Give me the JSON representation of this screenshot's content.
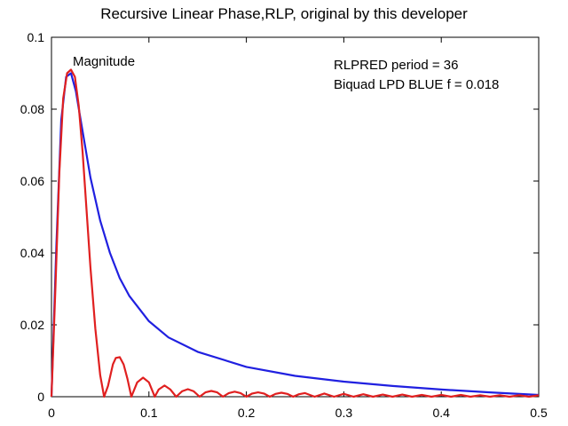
{
  "chart_data": {
    "type": "line",
    "title": "Recursive Linear Phase,RLP, original by this developer",
    "xlabel": "",
    "ylabel": "",
    "xlim": [
      0,
      0.5
    ],
    "ylim": [
      0,
      0.1
    ],
    "x_ticks": [
      "0",
      "0.1",
      "0.2",
      "0.3",
      "0.4",
      "0.5"
    ],
    "y_ticks": [
      "0",
      "0.02",
      "0.04",
      "0.06",
      "0.08",
      "0.1"
    ],
    "grid": false,
    "annotations": {
      "magnitude": "Magnitude",
      "rlpred": "RLPRED   period = 36",
      "biquad": "Biquad LPD  BLUE   f = 0.018"
    },
    "series": [
      {
        "color": "#2020e0",
        "x": [
          0.0,
          0.005,
          0.01,
          0.015,
          0.02,
          0.025,
          0.03,
          0.035,
          0.04,
          0.05,
          0.06,
          0.07,
          0.08,
          0.1,
          0.12,
          0.15,
          0.2,
          0.25,
          0.3,
          0.35,
          0.4,
          0.45,
          0.5
        ],
        "y": [
          0.0,
          0.042,
          0.077,
          0.089,
          0.09,
          0.085,
          0.077,
          0.069,
          0.061,
          0.049,
          0.04,
          0.033,
          0.028,
          0.021,
          0.0165,
          0.0125,
          0.0083,
          0.0058,
          0.0042,
          0.003,
          0.002,
          0.0012,
          0.0005
        ]
      },
      {
        "color": "#e02020",
        "x": [
          0.0,
          0.004,
          0.008,
          0.012,
          0.016,
          0.02,
          0.024,
          0.028,
          0.032,
          0.036,
          0.04,
          0.045,
          0.05,
          0.054,
          0.058,
          0.063,
          0.066,
          0.07,
          0.074,
          0.078,
          0.082,
          0.088,
          0.094,
          0.1,
          0.106,
          0.11,
          0.116,
          0.122,
          0.128,
          0.134,
          0.14,
          0.146,
          0.152,
          0.158,
          0.164,
          0.17,
          0.176,
          0.182,
          0.188,
          0.194,
          0.2,
          0.206,
          0.212,
          0.218,
          0.224,
          0.23,
          0.236,
          0.242,
          0.248,
          0.254,
          0.26,
          0.27,
          0.28,
          0.29,
          0.3,
          0.31,
          0.32,
          0.33,
          0.34,
          0.35,
          0.36,
          0.37,
          0.38,
          0.39,
          0.4,
          0.41,
          0.42,
          0.43,
          0.44,
          0.45,
          0.46,
          0.47,
          0.48,
          0.49,
          0.5
        ],
        "y": [
          0.0,
          0.03,
          0.062,
          0.083,
          0.09,
          0.091,
          0.089,
          0.081,
          0.068,
          0.052,
          0.036,
          0.019,
          0.006,
          0.0,
          0.003,
          0.009,
          0.0108,
          0.011,
          0.009,
          0.005,
          0.0,
          0.004,
          0.0053,
          0.004,
          0.0,
          0.002,
          0.0031,
          0.002,
          0.0,
          0.0015,
          0.0021,
          0.0015,
          0.0,
          0.0012,
          0.0016,
          0.0012,
          0.0,
          0.001,
          0.0014,
          0.001,
          0.0,
          0.0009,
          0.0012,
          0.0009,
          0.0,
          0.0008,
          0.0011,
          0.0008,
          0.0,
          0.0007,
          0.001,
          0.0,
          0.0009,
          0.0,
          0.0008,
          0.0,
          0.0007,
          0.0,
          0.0006,
          0.0,
          0.0006,
          0.0,
          0.0005,
          0.0,
          0.0005,
          0.0,
          0.0005,
          0.0,
          0.0004,
          0.0,
          0.0004,
          0.0,
          0.0004,
          0.0,
          0.0004
        ]
      }
    ]
  }
}
